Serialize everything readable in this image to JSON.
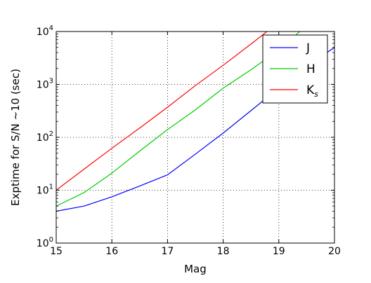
{
  "chart_data": {
    "type": "line",
    "xlabel": "Mag",
    "ylabel": "Exptime for S/N ~10 (sec)",
    "x_scale": "linear",
    "y_scale": "log",
    "xlim": [
      15,
      20
    ],
    "ylim": [
      1,
      10000
    ],
    "grid": true,
    "legend_position": "top-right",
    "x_ticks": [
      "15",
      "16",
      "17",
      "18",
      "19",
      "20"
    ],
    "y_ticks": [
      {
        "base": "10",
        "exp": "0"
      },
      {
        "base": "10",
        "exp": "1"
      },
      {
        "base": "10",
        "exp": "2"
      },
      {
        "base": "10",
        "exp": "3"
      },
      {
        "base": "10",
        "exp": "4"
      }
    ],
    "series": [
      {
        "name": "J",
        "color": "#0000ff",
        "points": [
          [
            15,
            4
          ],
          [
            15.5,
            5
          ],
          [
            16,
            7.5
          ],
          [
            16.5,
            12
          ],
          [
            17,
            19.5
          ],
          [
            17.5,
            48
          ],
          [
            18,
            120
          ],
          [
            18.5,
            320
          ],
          [
            19,
            850
          ],
          [
            19.5,
            2200
          ],
          [
            20,
            5000
          ]
        ]
      },
      {
        "name": "H",
        "color": "#00cc00",
        "points": [
          [
            15,
            5
          ],
          [
            15.5,
            9
          ],
          [
            16,
            21
          ],
          [
            16.5,
            55
          ],
          [
            17,
            140
          ],
          [
            17.5,
            330
          ],
          [
            18,
            850
          ],
          [
            18.5,
            1900
          ],
          [
            19,
            4500
          ],
          [
            19.5,
            13000
          ]
        ]
      },
      {
        "name": "K",
        "subscript": "s",
        "color": "#ff0000",
        "points": [
          [
            15,
            10
          ],
          [
            15.5,
            25
          ],
          [
            16,
            62
          ],
          [
            16.5,
            150
          ],
          [
            17,
            370
          ],
          [
            17.5,
            950
          ],
          [
            18,
            2300
          ],
          [
            18.5,
            5800
          ],
          [
            19,
            15000
          ]
        ]
      }
    ]
  }
}
